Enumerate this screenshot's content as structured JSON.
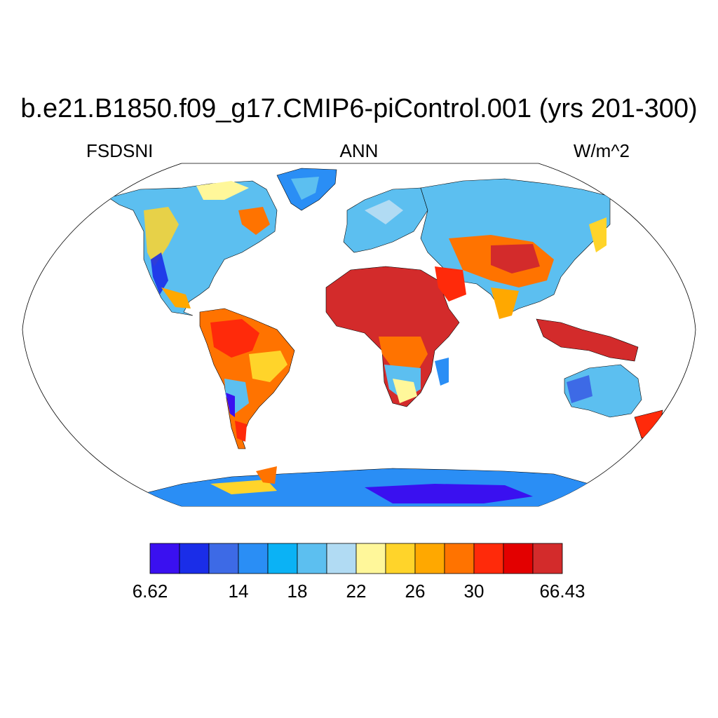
{
  "title": "b.e21.B1850.f09_g17.CMIP6-piControl.001 (yrs 201-300)",
  "left_label": "FSDSNI",
  "center_label": "ANN",
  "right_label": "W/m^2",
  "colorbar": {
    "colors": [
      "#3a10f0",
      "#1a2de8",
      "#3d6ae6",
      "#2a8ef5",
      "#0bb2f5",
      "#5cbff0",
      "#b1dbf3",
      "#fff79a",
      "#ffd42a",
      "#ffa800",
      "#ff7300",
      "#ff2a0a",
      "#e30000",
      "#d32b2b"
    ],
    "tick_labels": [
      {
        "text": "6.62",
        "boundary": 0
      },
      {
        "text": "14",
        "boundary": 3
      },
      {
        "text": "18",
        "boundary": 5
      },
      {
        "text": "22",
        "boundary": 7
      },
      {
        "text": "26",
        "boundary": 9
      },
      {
        "text": "30",
        "boundary": 11
      },
      {
        "text": "66.43",
        "boundary": 14
      }
    ]
  }
}
